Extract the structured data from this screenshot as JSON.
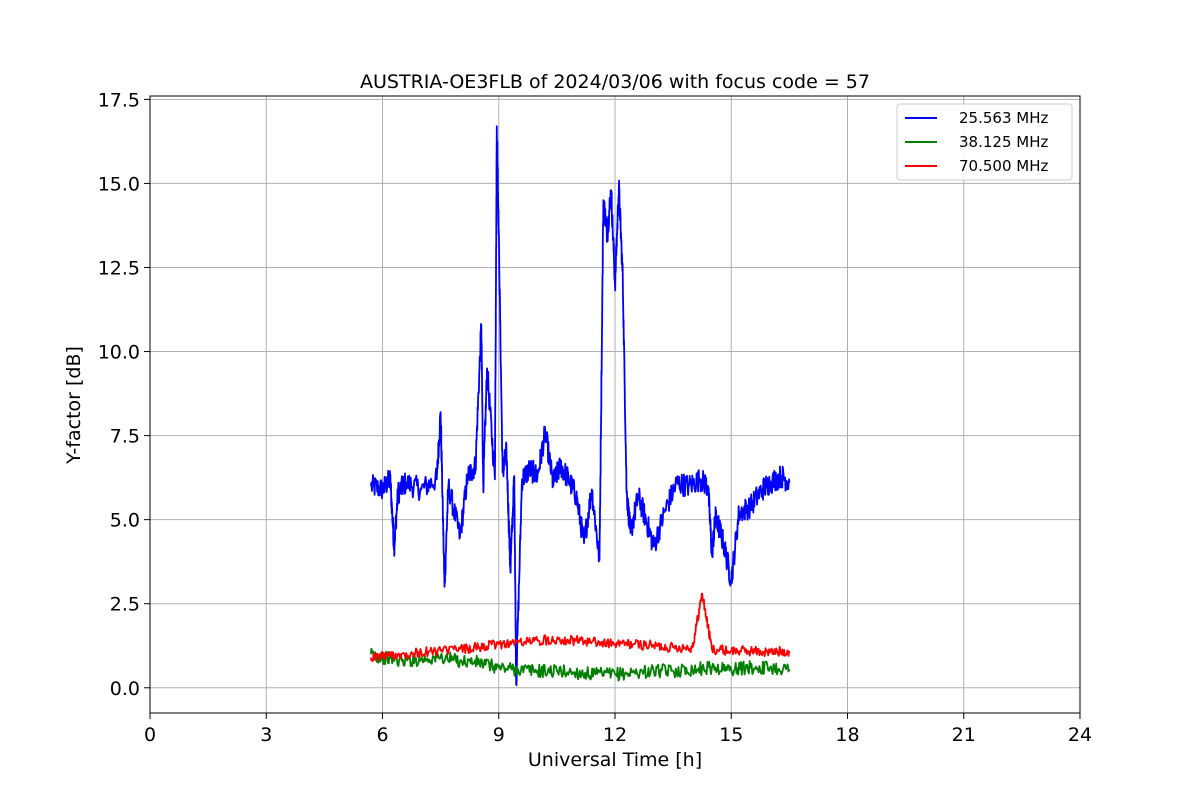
{
  "chart_data": {
    "type": "line",
    "title": "AUSTRIA-OE3FLB of 2024/03/06 with focus code = 57",
    "xlabel": "Universal Time [h]",
    "ylabel": "Y-factor [dB]",
    "xlim": [
      0,
      24
    ],
    "ylim": [
      -0.75,
      17.6
    ],
    "xticks": [
      "0",
      "3",
      "6",
      "9",
      "12",
      "15",
      "18",
      "21",
      "24"
    ],
    "yticks": [
      "0.0",
      "2.5",
      "5.0",
      "7.5",
      "10.0",
      "12.5",
      "15.0",
      "17.5"
    ],
    "grid": true,
    "legend_position": "top-right",
    "series": [
      {
        "name": "25.563 MHz",
        "color": "#0000ff",
        "x": [
          5.7,
          6.0,
          6.2,
          6.3,
          6.4,
          6.6,
          7.0,
          7.4,
          7.5,
          7.6,
          7.7,
          8.0,
          8.2,
          8.4,
          8.55,
          8.6,
          8.7,
          8.9,
          8.95,
          9.0,
          9.1,
          9.2,
          9.3,
          9.4,
          9.45,
          9.6,
          9.8,
          10.0,
          10.2,
          10.4,
          10.6,
          10.8,
          11.0,
          11.2,
          11.4,
          11.6,
          11.7,
          11.8,
          11.9,
          12.0,
          12.1,
          12.2,
          12.3,
          12.4,
          12.6,
          12.8,
          13.0,
          13.3,
          13.6,
          13.9,
          14.2,
          14.4,
          14.5,
          14.6,
          14.8,
          15.0,
          15.2,
          15.5,
          15.8,
          16.0,
          16.3,
          16.5
        ],
        "y": [
          6.0,
          5.9,
          6.2,
          4.2,
          5.8,
          6.1,
          5.9,
          6.2,
          8.2,
          3.0,
          6.0,
          4.5,
          6.3,
          6.6,
          10.8,
          6.0,
          9.5,
          6.2,
          16.7,
          13.5,
          6.4,
          7.0,
          3.5,
          6.3,
          0.1,
          6.2,
          6.5,
          6.3,
          7.6,
          6.1,
          6.6,
          6.2,
          5.7,
          4.3,
          5.9,
          3.8,
          14.5,
          13.5,
          14.8,
          12.0,
          14.9,
          12.2,
          5.8,
          4.6,
          5.7,
          5.0,
          4.2,
          5.3,
          6.1,
          6.0,
          6.2,
          6.0,
          4.0,
          5.1,
          4.3,
          3.2,
          5.2,
          5.4,
          5.9,
          6.1,
          6.3,
          6.1
        ]
      },
      {
        "name": "38.125 MHz",
        "color": "#008000",
        "x": [
          5.7,
          6.0,
          6.5,
          7.0,
          7.5,
          8.0,
          8.5,
          9.0,
          9.5,
          10.0,
          10.5,
          11.0,
          11.5,
          12.0,
          12.5,
          13.0,
          13.5,
          14.0,
          14.5,
          15.0,
          15.5,
          16.0,
          16.5
        ],
        "y": [
          1.0,
          0.9,
          0.8,
          0.85,
          0.9,
          0.8,
          0.75,
          0.6,
          0.55,
          0.5,
          0.5,
          0.45,
          0.4,
          0.4,
          0.45,
          0.5,
          0.5,
          0.55,
          0.6,
          0.55,
          0.6,
          0.6,
          0.55
        ]
      },
      {
        "name": "70.500 MHz",
        "color": "#ff0000",
        "x": [
          5.7,
          6.0,
          6.5,
          7.0,
          7.5,
          8.0,
          8.5,
          9.0,
          9.5,
          10.0,
          10.5,
          11.0,
          11.5,
          12.0,
          12.5,
          13.0,
          13.5,
          14.0,
          14.25,
          14.5,
          15.0,
          15.5,
          16.0,
          16.5
        ],
        "y": [
          0.9,
          0.95,
          1.0,
          1.05,
          1.1,
          1.15,
          1.2,
          1.3,
          1.35,
          1.4,
          1.45,
          1.4,
          1.35,
          1.3,
          1.3,
          1.25,
          1.2,
          1.2,
          2.8,
          1.15,
          1.1,
          1.1,
          1.05,
          1.1
        ]
      }
    ]
  }
}
